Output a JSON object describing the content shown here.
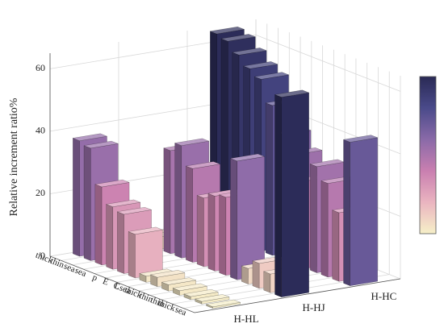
{
  "chart_data": {
    "type": "bar3d",
    "ylabel": "Relative increment ratio%",
    "categories": [
      "thick",
      "thin",
      "sea",
      "sea",
      "p",
      "E",
      "C",
      "Lsea",
      "thick",
      "thin",
      "thin",
      "thick",
      "sea"
    ],
    "series": [
      {
        "name": "H-HL",
        "values": [
          37,
          36,
          25,
          20,
          19,
          14,
          2,
          3,
          2,
          1.5,
          1,
          0.8,
          0.5
        ]
      },
      {
        "name": "H-HJ",
        "values": [
          3,
          4,
          33,
          36,
          30,
          22,
          24,
          25,
          38,
          5,
          8,
          6,
          64
        ]
      },
      {
        "name": "H-HC",
        "values": [
          64,
          63,
          60,
          57,
          55,
          48,
          40,
          35,
          28,
          34,
          30,
          22,
          46
        ]
      }
    ],
    "colormap": [
      "#f6f0c8",
      "#eab4c0",
      "#c97fb0",
      "#8a6aa8",
      "#4a4a8a",
      "#2a2a55"
    ],
    "zlim": [
      0,
      65
    ],
    "yticks": [
      0,
      20,
      40,
      60
    ],
    "grid": true
  }
}
